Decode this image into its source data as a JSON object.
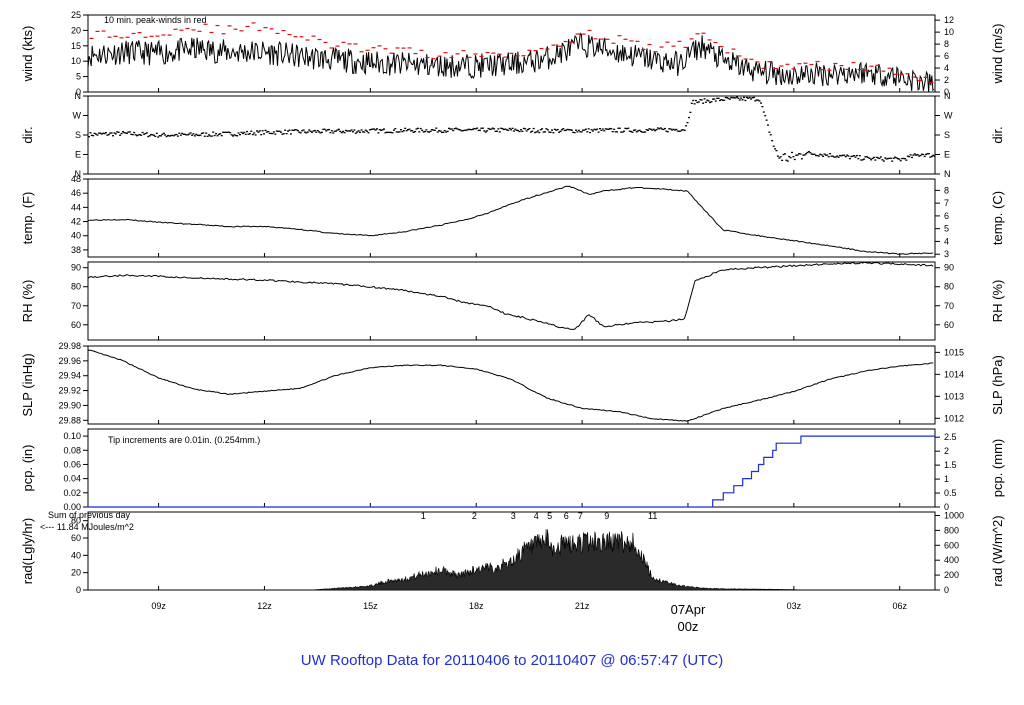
{
  "footer_title": "UW Rooftop Data for 20110406  to  20110407 @ 06:57:47  (UTC)",
  "date_marker": {
    "label": "07Apr",
    "sublabel": "00z",
    "color": "#d01010"
  },
  "x_axis": {
    "start_hour": 7,
    "end_hour": 31,
    "ticks": [
      {
        "hour": 9,
        "label": "09z"
      },
      {
        "hour": 12,
        "label": "12z"
      },
      {
        "hour": 15,
        "label": "15z"
      },
      {
        "hour": 18,
        "label": "18z"
      },
      {
        "hour": 21,
        "label": "21z"
      },
      {
        "hour": 27,
        "label": "03z"
      },
      {
        "hour": 30,
        "label": "06z"
      }
    ],
    "date_marker_hour": 24
  },
  "panels": [
    {
      "id": "wind",
      "left_label": "wind (kts)",
      "right_label": "wind (m/s)",
      "ylim": [
        0,
        25
      ],
      "left_ticks": [
        0,
        5,
        10,
        15,
        20,
        25
      ],
      "right_ylim": [
        0,
        12.86
      ],
      "right_ticks": [
        0,
        2,
        4,
        6,
        8,
        10,
        12
      ],
      "annotation": {
        "text": "10 min. peak-winds in red",
        "color": "#c00000"
      }
    },
    {
      "id": "dir",
      "left_label": "dir.",
      "right_label": "dir.",
      "ylim": [
        0,
        360
      ],
      "left_ticks": [
        {
          "v": 0,
          "l": "N"
        },
        {
          "v": 90,
          "l": "E"
        },
        {
          "v": 180,
          "l": "S"
        },
        {
          "v": 270,
          "l": "W"
        },
        {
          "v": 360,
          "l": "N"
        }
      ],
      "right_ticks": [
        {
          "v": 0,
          "l": "N"
        },
        {
          "v": 90,
          "l": "E"
        },
        {
          "v": 180,
          "l": "S"
        },
        {
          "v": 270,
          "l": "W"
        },
        {
          "v": 360,
          "l": "N"
        }
      ]
    },
    {
      "id": "temp",
      "left_label": "temp. (F)",
      "right_label": "temp. (C)",
      "ylim": [
        37,
        48
      ],
      "left_ticks": [
        38,
        40,
        42,
        44,
        46,
        48
      ],
      "right_ylim": [
        2.78,
        8.89
      ],
      "right_ticks": [
        3,
        4,
        5,
        6,
        7,
        8
      ]
    },
    {
      "id": "rh",
      "left_label": "RH (%)",
      "right_label": "RH (%)",
      "ylim": [
        52,
        93
      ],
      "left_ticks": [
        60,
        70,
        80,
        90
      ],
      "right_ylim": [
        52,
        93
      ],
      "right_ticks": [
        60,
        70,
        80,
        90
      ]
    },
    {
      "id": "slp",
      "left_label": "SLP (inHg)",
      "right_label": "SLP (hPa)",
      "ylim": [
        29.875,
        29.98
      ],
      "left_ticks": [
        "29.88",
        "29.90",
        "29.92",
        "29.94",
        "29.96",
        "29.98"
      ],
      "right_ylim": [
        1011.74,
        1015.29
      ],
      "right_ticks": [
        1012,
        1013,
        1014,
        1015
      ]
    },
    {
      "id": "pcp",
      "left_label": "pcp. (in)",
      "right_label": "pcp. (mm)",
      "ylim": [
        0,
        0.11
      ],
      "left_ticks": [
        "0.00",
        "0.02",
        "0.04",
        "0.06",
        "0.08",
        "0.10"
      ],
      "right_ylim": [
        0,
        2.794
      ],
      "right_ticks": [
        "0",
        "0.5",
        "1",
        "1.5",
        "2",
        "2.5"
      ],
      "annotation": {
        "text": "Tip increments are 0.01in. (0.254mm.)",
        "color": "#1f2fd0"
      }
    },
    {
      "id": "rad",
      "left_label": "rad(Lgly/hr)",
      "right_label": "rad (W/m^2)",
      "ylim": [
        0,
        90
      ],
      "left_ticks": [
        0,
        20,
        40,
        60,
        80
      ],
      "right_ylim": [
        0,
        1046.7
      ],
      "right_ticks": [
        0,
        200,
        400,
        600,
        800,
        1000
      ],
      "annotation": {
        "text": "Sum of previous day",
        "text2": "<--- 11.84 MJoules/m^2",
        "color": "#9020b0"
      },
      "hour_labels": [
        {
          "hour": 16.5,
          "label": "1"
        },
        {
          "hour": 17.95,
          "label": "2"
        },
        {
          "hour": 19.05,
          "label": "3"
        },
        {
          "hour": 19.7,
          "label": "4"
        },
        {
          "hour": 20.08,
          "label": "5"
        },
        {
          "hour": 20.55,
          "label": "6"
        },
        {
          "hour": 20.95,
          "label": "7"
        },
        {
          "hour": 21.7,
          "label": "9"
        },
        {
          "hour": 23.0,
          "label": "11"
        }
      ]
    }
  ],
  "chart_data": {
    "type": "line",
    "x_units": "hour UTC (hours after 00z 06Apr; 24 = 00z 07Apr)",
    "series": [
      {
        "name": "wind (kts)",
        "x": [
          7,
          8,
          9,
          10,
          11,
          12,
          13,
          14,
          15,
          16,
          17,
          18,
          19,
          19.6,
          20,
          21,
          22,
          23,
          23.8,
          24,
          24.4,
          25,
          26,
          27,
          28,
          29,
          30,
          30.7,
          31
        ],
        "y": [
          12,
          13,
          12.5,
          14,
          13,
          13,
          11.5,
          10.5,
          9.5,
          9,
          8.5,
          8.5,
          9,
          10,
          11,
          15.5,
          13,
          10.5,
          9,
          12,
          15,
          10,
          6.5,
          5.5,
          6,
          6.5,
          5,
          3,
          2
        ]
      },
      {
        "name": "peak wind (kts)",
        "x": [
          7,
          8,
          9,
          10,
          11,
          12,
          13,
          14,
          15,
          16,
          17,
          18,
          19,
          20,
          21,
          22,
          23,
          24,
          24.4,
          25,
          26,
          27,
          28,
          29,
          30,
          31
        ],
        "y": [
          19,
          18,
          19.5,
          21,
          20,
          21.5,
          18,
          15,
          14,
          13,
          12,
          12,
          12.5,
          14.5,
          19,
          17,
          14,
          16,
          20,
          14,
          9,
          8.5,
          8.5,
          8,
          6.5,
          4
        ]
      },
      {
        "name": "direction (deg)",
        "x": [
          7,
          8,
          9,
          10,
          11,
          12,
          13,
          14,
          15,
          16,
          17,
          18,
          19,
          20,
          21,
          22,
          23,
          23.9,
          24.1,
          25,
          26,
          26.5,
          26.9,
          27.3,
          28,
          29,
          30,
          30.6,
          31
        ],
        "y": [
          185,
          190,
          182,
          184,
          188,
          195,
          198,
          200,
          202,
          204,
          205,
          205,
          206,
          203,
          203,
          205,
          205,
          210,
          335,
          348,
          350,
          85,
          75,
          100,
          90,
          75,
          70,
          95,
          85
        ]
      },
      {
        "name": "temp (F)",
        "x": [
          7,
          8,
          9,
          10,
          11,
          12,
          13,
          14,
          15,
          16,
          17,
          17.8,
          18.5,
          19,
          19.6,
          20.2,
          20.6,
          20.8,
          21.2,
          21.6,
          22.5,
          23.5,
          24,
          24.3,
          25,
          26,
          27,
          28,
          29,
          30,
          31
        ],
        "y": [
          42.2,
          42.3,
          41.9,
          41.6,
          41.3,
          41.3,
          40.9,
          40.3,
          40,
          40.6,
          41.5,
          42.4,
          43.5,
          44.5,
          45.5,
          46.4,
          47,
          46.7,
          45.8,
          46.3,
          46.8,
          46.5,
          46.3,
          44.5,
          40.8,
          40,
          39.3,
          38.6,
          37.8,
          37.4,
          37.6
        ]
      },
      {
        "name": "RH (%)",
        "x": [
          7,
          8,
          9,
          10,
          11,
          12,
          13,
          14,
          15,
          16,
          17,
          17.6,
          18.3,
          18.8,
          19.4,
          20,
          20.5,
          20.8,
          21.2,
          21.6,
          22.5,
          23.5,
          23.9,
          24.2,
          25,
          26,
          27,
          28,
          29,
          30,
          31
        ],
        "y": [
          85,
          86,
          85.5,
          84.5,
          84,
          83.5,
          82.5,
          81.5,
          80,
          78,
          75,
          72,
          70,
          66,
          63.5,
          61,
          58,
          57.5,
          65.5,
          59,
          61,
          62,
          63,
          83,
          89,
          90,
          91,
          92,
          92.5,
          92,
          91
        ]
      },
      {
        "name": "SLP (inHg)",
        "x": [
          7,
          8,
          9,
          10,
          11,
          12,
          13,
          14,
          15,
          16,
          17,
          18,
          19,
          20,
          21,
          22,
          23,
          24,
          25,
          26,
          27,
          28,
          29,
          30,
          31
        ],
        "y": [
          29.975,
          29.96,
          29.937,
          29.922,
          29.915,
          29.919,
          29.923,
          29.94,
          29.951,
          29.954,
          29.954,
          29.949,
          29.935,
          29.91,
          29.896,
          29.892,
          29.882,
          29.879,
          29.896,
          29.907,
          29.919,
          29.935,
          29.946,
          29.953,
          29.957
        ]
      },
      {
        "name": "precip (in)",
        "x": [
          7,
          24.5,
          24.7,
          25.0,
          25.3,
          25.55,
          25.8,
          26.0,
          26.15,
          26.4,
          26.5,
          27.0,
          27.2,
          31
        ],
        "y": [
          0,
          0,
          0.01,
          0.02,
          0.03,
          0.04,
          0.05,
          0.06,
          0.07,
          0.08,
          0.09,
          0.09,
          0.1,
          0.1
        ]
      },
      {
        "name": "radiation (Lgly/hr)",
        "x": [
          7,
          13.3,
          14,
          15,
          15.5,
          16,
          16.5,
          17,
          17.5,
          18,
          18.5,
          19,
          19.3,
          19.7,
          20,
          20.2,
          20.5,
          20.8,
          21,
          21.5,
          22,
          22.5,
          23,
          23.5,
          24,
          24.5,
          25,
          26,
          27,
          27.2,
          31
        ],
        "y": [
          0,
          0,
          2,
          5,
          11,
          14,
          20,
          25,
          18,
          26,
          28,
          35,
          48,
          55,
          62,
          50,
          58,
          56,
          60,
          60,
          60,
          58,
          15,
          8,
          4,
          2,
          1.5,
          1,
          0.5,
          0,
          0
        ]
      }
    ]
  }
}
